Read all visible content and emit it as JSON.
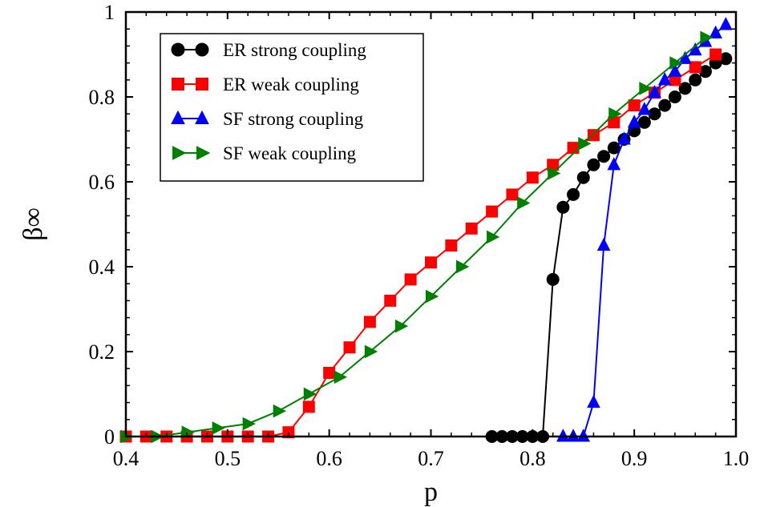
{
  "chart_data": {
    "type": "line",
    "xlabel": "p",
    "ylabel": "β∞",
    "xlim": [
      0.4,
      1.0
    ],
    "ylim": [
      0,
      1
    ],
    "xticks": [
      0.4,
      0.5,
      0.6,
      0.7,
      0.8,
      0.9,
      1.0
    ],
    "xtick_labels": [
      "0.4",
      "0.5",
      "0.6",
      "0.7",
      "0.8",
      "0.9",
      "1.0"
    ],
    "yticks": [
      0,
      0.2,
      0.4,
      0.6,
      0.8,
      1
    ],
    "ytick_labels": [
      "0",
      "0.2",
      "0.4",
      "0.6",
      "0.8",
      "1"
    ],
    "grid": false,
    "legend_position": "top-left",
    "series": [
      {
        "name": "ER strong coupling",
        "color": "#000000",
        "marker": "circle",
        "x": [
          0.76,
          0.77,
          0.78,
          0.79,
          0.8,
          0.81,
          0.82,
          0.83,
          0.84,
          0.85,
          0.86,
          0.87,
          0.88,
          0.89,
          0.9,
          0.91,
          0.92,
          0.93,
          0.94,
          0.95,
          0.96,
          0.97,
          0.98,
          0.99
        ],
        "y": [
          0,
          0,
          0,
          0,
          0,
          0,
          0.37,
          0.54,
          0.57,
          0.61,
          0.64,
          0.66,
          0.68,
          0.7,
          0.72,
          0.74,
          0.76,
          0.78,
          0.8,
          0.82,
          0.84,
          0.86,
          0.88,
          0.89
        ]
      },
      {
        "name": "ER weak coupling",
        "color": "#ff0000",
        "marker": "square",
        "x": [
          0.4,
          0.42,
          0.44,
          0.46,
          0.48,
          0.5,
          0.52,
          0.54,
          0.56,
          0.58,
          0.6,
          0.62,
          0.64,
          0.66,
          0.68,
          0.7,
          0.72,
          0.74,
          0.76,
          0.78,
          0.8,
          0.82,
          0.84,
          0.86,
          0.88,
          0.9,
          0.92,
          0.94,
          0.96,
          0.98
        ],
        "y": [
          0,
          0,
          0,
          0,
          0,
          0,
          0,
          0,
          0.01,
          0.07,
          0.15,
          0.21,
          0.27,
          0.32,
          0.37,
          0.41,
          0.45,
          0.49,
          0.53,
          0.57,
          0.61,
          0.64,
          0.68,
          0.71,
          0.74,
          0.78,
          0.81,
          0.84,
          0.87,
          0.9
        ]
      },
      {
        "name": "SF strong coupling",
        "color": "#0000ff",
        "marker": "triangle-up",
        "x": [
          0.83,
          0.84,
          0.85,
          0.86,
          0.87,
          0.88,
          0.89,
          0.9,
          0.91,
          0.92,
          0.93,
          0.94,
          0.95,
          0.96,
          0.97,
          0.98,
          0.99
        ],
        "y": [
          0,
          0,
          0,
          0.08,
          0.45,
          0.64,
          0.7,
          0.74,
          0.77,
          0.81,
          0.84,
          0.86,
          0.89,
          0.91,
          0.93,
          0.95,
          0.97
        ]
      },
      {
        "name": "SF weak coupling",
        "color": "#008000",
        "marker": "triangle-right",
        "x": [
          0.4,
          0.43,
          0.46,
          0.49,
          0.52,
          0.55,
          0.58,
          0.61,
          0.64,
          0.67,
          0.7,
          0.73,
          0.76,
          0.79,
          0.82,
          0.85,
          0.88,
          0.91,
          0.94,
          0.97
        ],
        "y": [
          0,
          0,
          0.01,
          0.02,
          0.03,
          0.06,
          0.1,
          0.14,
          0.2,
          0.26,
          0.33,
          0.4,
          0.47,
          0.55,
          0.62,
          0.69,
          0.76,
          0.82,
          0.88,
          0.94
        ]
      }
    ]
  }
}
